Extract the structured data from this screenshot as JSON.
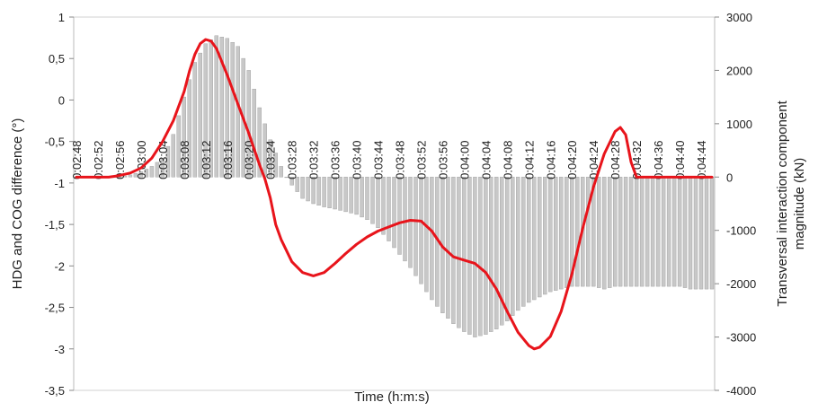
{
  "chart_data": {
    "type": "bar+line",
    "xlabel": "Time (h:m:s)",
    "y1label": "HDG and COG difference (°)",
    "y2label_line1": "Transversal interaction component",
    "y2label_line2": "magnitude (kN)",
    "y1lim": [
      -3.5,
      1
    ],
    "y1ticks": [
      "1",
      "0,5",
      "0",
      "-0,5",
      "-1",
      "-1,5",
      "-2",
      "-2,5",
      "-3",
      "-3,5"
    ],
    "y1tick_values": [
      1,
      0.5,
      0,
      -0.5,
      -1,
      -1.5,
      -2,
      -2.5,
      -3,
      -3.5
    ],
    "y2lim": [
      -4000,
      3000
    ],
    "y2ticks": [
      "3000",
      "2000",
      "1000",
      "0",
      "-1000",
      "-2000",
      "-3000",
      "-4000"
    ],
    "y2tick_values": [
      3000,
      2000,
      1000,
      0,
      -1000,
      -2000,
      -3000,
      -4000
    ],
    "x_start_seconds": 168,
    "x_end_seconds": 286,
    "x_step_seconds": 1,
    "x_tick_labels": [
      "0:02:48",
      "0:02:52",
      "0:02:56",
      "0:03:00",
      "0:03:04",
      "0:03:08",
      "0:03:12",
      "0:03:16",
      "0:03:20",
      "0:03:24",
      "0:03:28",
      "0:03:32",
      "0:03:36",
      "0:03:40",
      "0:03:44",
      "0:03:48",
      "0:03:52",
      "0:03:56",
      "0:04:00",
      "0:04:04",
      "0:04:08",
      "0:04:12",
      "0:04:16",
      "0:04:20",
      "0:04:24",
      "0:04:28",
      "0:04:32",
      "0:04:36",
      "0:04:40",
      "0:04:44"
    ],
    "series": [
      {
        "name": "",
        "kind": "bar",
        "axis": "right",
        "color": "#c8c8c8",
        "points": [
          [
            168,
            0
          ],
          [
            176,
            0
          ],
          [
            177,
            20
          ],
          [
            178,
            40
          ],
          [
            180,
            100
          ],
          [
            182,
            200
          ],
          [
            184,
            350
          ],
          [
            186,
            800
          ],
          [
            188,
            1500
          ],
          [
            190,
            2150
          ],
          [
            192,
            2500
          ],
          [
            194,
            2650
          ],
          [
            196,
            2600
          ],
          [
            198,
            2450
          ],
          [
            200,
            2000
          ],
          [
            202,
            1300
          ],
          [
            204,
            700
          ],
          [
            206,
            200
          ],
          [
            207,
            0
          ],
          [
            208,
            -150
          ],
          [
            210,
            -400
          ],
          [
            212,
            -500
          ],
          [
            214,
            -560
          ],
          [
            216,
            -600
          ],
          [
            218,
            -650
          ],
          [
            220,
            -700
          ],
          [
            222,
            -800
          ],
          [
            224,
            -950
          ],
          [
            226,
            -1200
          ],
          [
            228,
            -1450
          ],
          [
            230,
            -1700
          ],
          [
            232,
            -2000
          ],
          [
            234,
            -2300
          ],
          [
            236,
            -2550
          ],
          [
            238,
            -2750
          ],
          [
            240,
            -2900
          ],
          [
            242,
            -3000
          ],
          [
            244,
            -2950
          ],
          [
            246,
            -2850
          ],
          [
            248,
            -2700
          ],
          [
            250,
            -2500
          ],
          [
            252,
            -2350
          ],
          [
            254,
            -2250
          ],
          [
            256,
            -2150
          ],
          [
            258,
            -2100
          ],
          [
            260,
            -2050
          ],
          [
            262,
            -2050
          ],
          [
            264,
            -2050
          ],
          [
            266,
            -2100
          ],
          [
            268,
            -2050
          ],
          [
            270,
            -2050
          ],
          [
            272,
            -2050
          ],
          [
            274,
            -2050
          ],
          [
            276,
            -2050
          ],
          [
            278,
            -2050
          ],
          [
            280,
            -2050
          ],
          [
            282,
            -2100
          ],
          [
            284,
            -2100
          ],
          [
            286,
            -2100
          ]
        ]
      },
      {
        "name": "",
        "kind": "line",
        "axis": "left",
        "color": "#e8141b",
        "points": [
          [
            168,
            -0.93
          ],
          [
            174,
            -0.93
          ],
          [
            176,
            -0.91
          ],
          [
            178,
            -0.88
          ],
          [
            180,
            -0.82
          ],
          [
            182,
            -0.7
          ],
          [
            184,
            -0.5
          ],
          [
            186,
            -0.25
          ],
          [
            188,
            0.1
          ],
          [
            189,
            0.35
          ],
          [
            190,
            0.55
          ],
          [
            191,
            0.68
          ],
          [
            192,
            0.73
          ],
          [
            193,
            0.71
          ],
          [
            194,
            0.62
          ],
          [
            196,
            0.3
          ],
          [
            198,
            -0.05
          ],
          [
            200,
            -0.4
          ],
          [
            202,
            -0.78
          ],
          [
            203,
            -0.95
          ],
          [
            204,
            -1.18
          ],
          [
            205,
            -1.5
          ],
          [
            206,
            -1.68
          ],
          [
            208,
            -1.95
          ],
          [
            210,
            -2.08
          ],
          [
            212,
            -2.12
          ],
          [
            214,
            -2.08
          ],
          [
            216,
            -1.97
          ],
          [
            218,
            -1.85
          ],
          [
            220,
            -1.74
          ],
          [
            222,
            -1.65
          ],
          [
            224,
            -1.58
          ],
          [
            226,
            -1.53
          ],
          [
            228,
            -1.48
          ],
          [
            230,
            -1.45
          ],
          [
            232,
            -1.46
          ],
          [
            234,
            -1.58
          ],
          [
            236,
            -1.77
          ],
          [
            238,
            -1.89
          ],
          [
            240,
            -1.93
          ],
          [
            242,
            -1.97
          ],
          [
            244,
            -2.08
          ],
          [
            246,
            -2.28
          ],
          [
            248,
            -2.55
          ],
          [
            250,
            -2.8
          ],
          [
            252,
            -2.96
          ],
          [
            253,
            -3.0
          ],
          [
            254,
            -2.98
          ],
          [
            256,
            -2.85
          ],
          [
            258,
            -2.55
          ],
          [
            260,
            -2.1
          ],
          [
            262,
            -1.55
          ],
          [
            264,
            -1.05
          ],
          [
            266,
            -0.65
          ],
          [
            268,
            -0.38
          ],
          [
            269,
            -0.33
          ],
          [
            270,
            -0.42
          ],
          [
            271,
            -0.75
          ],
          [
            272,
            -0.93
          ],
          [
            274,
            -0.93
          ],
          [
            286,
            -0.93
          ]
        ]
      }
    ]
  }
}
